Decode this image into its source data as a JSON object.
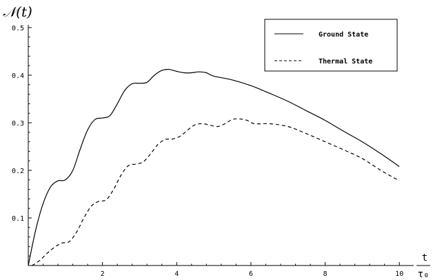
{
  "chart_data": {
    "type": "line",
    "title": "",
    "ylabel": "𝒩(t)",
    "xlabel_num": "t",
    "xlabel_den": "τ₀",
    "xlim": [
      0,
      10.2
    ],
    "ylim": [
      0,
      0.5
    ],
    "xticks": [
      2,
      4,
      6,
      8,
      10
    ],
    "yticks": [
      0.1,
      0.2,
      0.3,
      0.4,
      0.5
    ],
    "xtick_labels": [
      "2",
      "4",
      "6",
      "8",
      "10"
    ],
    "ytick_labels": [
      "0.1",
      "0.2",
      "0.3",
      "0.4",
      "0.5"
    ],
    "grid": false,
    "legend_position": "top-right",
    "series": [
      {
        "name": "Ground State",
        "style": "solid",
        "color": "#000000",
        "x": [
          0,
          0.2,
          0.4,
          0.6,
          0.8,
          1.0,
          1.2,
          1.4,
          1.6,
          1.8,
          2.0,
          2.2,
          2.4,
          2.6,
          2.8,
          3.0,
          3.2,
          3.4,
          3.6,
          3.8,
          4.0,
          4.2,
          4.4,
          4.6,
          4.8,
          5.0,
          5.5,
          6.0,
          6.5,
          7.0,
          7.5,
          8.0,
          8.5,
          9.0,
          9.5,
          10.0
        ],
        "y": [
          0.0,
          0.075,
          0.13,
          0.165,
          0.178,
          0.18,
          0.2,
          0.245,
          0.285,
          0.307,
          0.31,
          0.315,
          0.34,
          0.368,
          0.382,
          0.383,
          0.385,
          0.4,
          0.41,
          0.412,
          0.408,
          0.405,
          0.405,
          0.407,
          0.405,
          0.398,
          0.39,
          0.378,
          0.362,
          0.345,
          0.325,
          0.305,
          0.282,
          0.26,
          0.235,
          0.208
        ]
      },
      {
        "name": "Thermal State",
        "style": "dashed",
        "color": "#000000",
        "x": [
          0.1,
          0.3,
          0.5,
          0.7,
          0.9,
          1.1,
          1.3,
          1.5,
          1.7,
          1.9,
          2.1,
          2.3,
          2.5,
          2.7,
          2.9,
          3.1,
          3.3,
          3.5,
          3.7,
          3.9,
          4.1,
          4.3,
          4.5,
          4.7,
          4.9,
          5.1,
          5.3,
          5.5,
          5.7,
          5.9,
          6.1,
          6.5,
          7.0,
          7.5,
          8.0,
          8.5,
          9.0,
          9.5,
          10.0
        ],
        "y": [
          0.0,
          0.01,
          0.025,
          0.038,
          0.047,
          0.05,
          0.07,
          0.1,
          0.125,
          0.135,
          0.138,
          0.16,
          0.19,
          0.21,
          0.213,
          0.218,
          0.235,
          0.255,
          0.265,
          0.266,
          0.272,
          0.285,
          0.296,
          0.298,
          0.295,
          0.292,
          0.298,
          0.307,
          0.308,
          0.305,
          0.298,
          0.298,
          0.292,
          0.277,
          0.26,
          0.243,
          0.225,
          0.2,
          0.178
        ]
      }
    ]
  }
}
